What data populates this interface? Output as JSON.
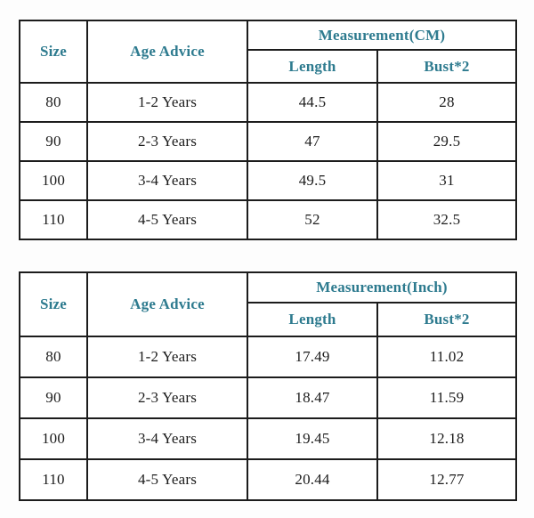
{
  "colors": {
    "header_text": "#2e7b8f",
    "body_text": "#1c1c1c",
    "border": "#1c1c1c",
    "background": "#fdfdfd"
  },
  "tables": [
    {
      "headers": {
        "size": "Size",
        "age_advice": "Age Advice",
        "measurement": "Measurement(CM)",
        "length": "Length",
        "bust": "Bust*2"
      },
      "rows": [
        [
          "80",
          "1-2 Years",
          "44.5",
          "28"
        ],
        [
          "90",
          "2-3 Years",
          "47",
          "29.5"
        ],
        [
          "100",
          "3-4 Years",
          "49.5",
          "31"
        ],
        [
          "110",
          "4-5 Years",
          "52",
          "32.5"
        ]
      ]
    },
    {
      "headers": {
        "size": "Size",
        "age_advice": "Age Advice",
        "measurement": "Measurement(Inch)",
        "length": "Length",
        "bust": "Bust*2"
      },
      "rows": [
        [
          "80",
          "1-2 Years",
          "17.49",
          "11.02"
        ],
        [
          "90",
          "2-3 Years",
          "18.47",
          "11.59"
        ],
        [
          "100",
          "3-4 Years",
          "19.45",
          "12.18"
        ],
        [
          "110",
          "4-5 Years",
          "20.44",
          "12.77"
        ]
      ]
    }
  ]
}
